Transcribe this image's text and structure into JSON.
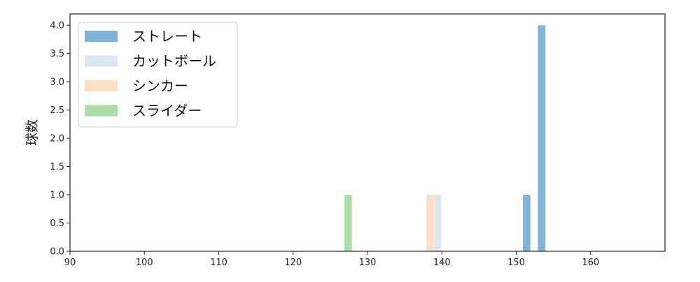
{
  "chart_data": {
    "type": "bar",
    "title": "",
    "xlabel": "",
    "ylabel": "球数",
    "xlim": [
      90,
      170
    ],
    "ylim": [
      0,
      4.2
    ],
    "xticks": [
      90,
      100,
      110,
      120,
      130,
      140,
      150,
      160
    ],
    "yticks": [
      "0.0",
      "0.5",
      "1.0",
      "1.5",
      "2.0",
      "2.5",
      "3.0",
      "3.5",
      "4.0"
    ],
    "grid": false,
    "legend_position": "top-left",
    "series": [
      {
        "name": "ストレート",
        "color": "#84b3d8",
        "bins": [
          {
            "start": 150.9,
            "end": 151.9,
            "count": 1
          },
          {
            "start": 152.9,
            "end": 153.9,
            "count": 4
          }
        ]
      },
      {
        "name": "カットボール",
        "color": "#dce7f4",
        "bins": [
          {
            "start": 139.0,
            "end": 139.9,
            "count": 1
          }
        ]
      },
      {
        "name": "シンカー",
        "color": "#fde0c6",
        "bins": [
          {
            "start": 137.9,
            "end": 139.0,
            "count": 1
          }
        ]
      },
      {
        "name": "スライダー",
        "color": "#aedcaa",
        "bins": [
          {
            "start": 126.9,
            "end": 127.9,
            "count": 1
          }
        ]
      }
    ]
  }
}
